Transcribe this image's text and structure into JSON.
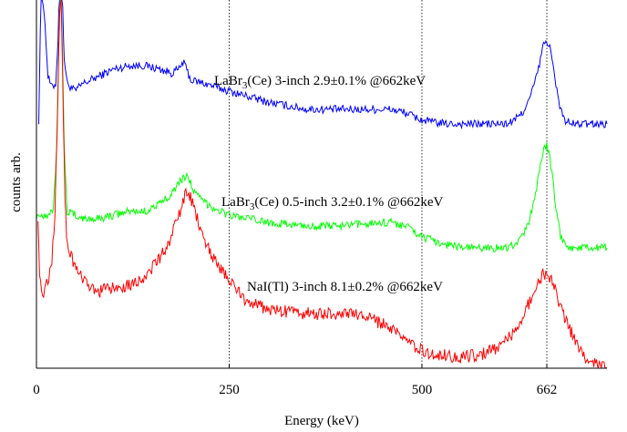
{
  "chart_data": {
    "type": "line",
    "title": "",
    "xlabel": "Energy (keV)",
    "ylabel": "counts arb.",
    "xlim": [
      0,
      740
    ],
    "ylim": [
      0,
      1
    ],
    "x_ticks": [
      {
        "value": 0,
        "label": "0"
      },
      {
        "value": 250,
        "label": "250"
      },
      {
        "value": 500,
        "label": "500"
      },
      {
        "value": 662,
        "label": "662"
      }
    ],
    "reference_lines_x": [
      250,
      500,
      662
    ],
    "grid": false,
    "legend": "none",
    "series": [
      {
        "key": "labr3_3inch",
        "label_prefix": "LaBr",
        "label_sub": "3",
        "label_suffix": "(Ce) 3-inch 2.9±0.1% @662keV",
        "color": "#0000ff",
        "points": [
          [
            3,
            0.68
          ],
          [
            6,
            1.05
          ],
          [
            10,
            0.98
          ],
          [
            15,
            0.8
          ],
          [
            20,
            0.77
          ],
          [
            25,
            0.78
          ],
          [
            28,
            0.9
          ],
          [
            30,
            1.05
          ],
          [
            33,
            1.05
          ],
          [
            36,
            0.85
          ],
          [
            40,
            0.78
          ],
          [
            50,
            0.76
          ],
          [
            60,
            0.78
          ],
          [
            80,
            0.8
          ],
          [
            100,
            0.82
          ],
          [
            120,
            0.83
          ],
          [
            140,
            0.83
          ],
          [
            160,
            0.82
          ],
          [
            175,
            0.81
          ],
          [
            185,
            0.82
          ],
          [
            190,
            0.84
          ],
          [
            195,
            0.82
          ],
          [
            200,
            0.79
          ],
          [
            220,
            0.78
          ],
          [
            250,
            0.76
          ],
          [
            300,
            0.73
          ],
          [
            350,
            0.71
          ],
          [
            400,
            0.71
          ],
          [
            440,
            0.71
          ],
          [
            460,
            0.71
          ],
          [
            480,
            0.7
          ],
          [
            500,
            0.68
          ],
          [
            530,
            0.67
          ],
          [
            560,
            0.67
          ],
          [
            610,
            0.67
          ],
          [
            620,
            0.68
          ],
          [
            630,
            0.7
          ],
          [
            640,
            0.74
          ],
          [
            650,
            0.81
          ],
          [
            655,
            0.86
          ],
          [
            658,
            0.89
          ],
          [
            662,
            0.9
          ],
          [
            666,
            0.88
          ],
          [
            670,
            0.83
          ],
          [
            675,
            0.76
          ],
          [
            680,
            0.71
          ],
          [
            685,
            0.68
          ],
          [
            695,
            0.67
          ],
          [
            720,
            0.67
          ],
          [
            740,
            0.67
          ]
        ]
      },
      {
        "key": "labr3_05inch",
        "label_prefix": "LaBr",
        "label_sub": "3",
        "label_suffix": "(Ce) 0.5-inch 3.2±0.1% @662keV",
        "color": "#00ff00",
        "points": [
          [
            0,
            0.42
          ],
          [
            15,
            0.42
          ],
          [
            22,
            0.44
          ],
          [
            26,
            0.6
          ],
          [
            29,
            0.88
          ],
          [
            31,
            1.05
          ],
          [
            33,
            0.95
          ],
          [
            36,
            0.6
          ],
          [
            40,
            0.43
          ],
          [
            60,
            0.41
          ],
          [
            80,
            0.41
          ],
          [
            100,
            0.42
          ],
          [
            120,
            0.43
          ],
          [
            140,
            0.43
          ],
          [
            160,
            0.45
          ],
          [
            175,
            0.48
          ],
          [
            185,
            0.51
          ],
          [
            190,
            0.52
          ],
          [
            195,
            0.53
          ],
          [
            200,
            0.51
          ],
          [
            205,
            0.48
          ],
          [
            215,
            0.46
          ],
          [
            230,
            0.44
          ],
          [
            250,
            0.42
          ],
          [
            300,
            0.4
          ],
          [
            350,
            0.39
          ],
          [
            400,
            0.39
          ],
          [
            440,
            0.4
          ],
          [
            460,
            0.4
          ],
          [
            480,
            0.39
          ],
          [
            500,
            0.36
          ],
          [
            530,
            0.34
          ],
          [
            560,
            0.33
          ],
          [
            610,
            0.33
          ],
          [
            620,
            0.34
          ],
          [
            630,
            0.36
          ],
          [
            640,
            0.41
          ],
          [
            650,
            0.51
          ],
          [
            655,
            0.57
          ],
          [
            658,
            0.6
          ],
          [
            662,
            0.61
          ],
          [
            666,
            0.58
          ],
          [
            670,
            0.51
          ],
          [
            675,
            0.42
          ],
          [
            680,
            0.36
          ],
          [
            685,
            0.34
          ],
          [
            695,
            0.33
          ],
          [
            720,
            0.33
          ],
          [
            740,
            0.33
          ]
        ]
      },
      {
        "key": "nai_3inch",
        "label_prefix": "NaI(Tl) 3-inch 8.1±0.2% @662keV",
        "label_sub": "",
        "label_suffix": "",
        "color": "#ff0000",
        "points": [
          [
            2,
            0.42
          ],
          [
            4,
            0.25
          ],
          [
            8,
            0.2
          ],
          [
            12,
            0.22
          ],
          [
            16,
            0.25
          ],
          [
            20,
            0.3
          ],
          [
            24,
            0.42
          ],
          [
            28,
            0.75
          ],
          [
            30,
            0.98
          ],
          [
            32,
            1.05
          ],
          [
            34,
            0.8
          ],
          [
            37,
            0.45
          ],
          [
            40,
            0.34
          ],
          [
            50,
            0.28
          ],
          [
            60,
            0.24
          ],
          [
            70,
            0.22
          ],
          [
            80,
            0.21
          ],
          [
            100,
            0.22
          ],
          [
            120,
            0.23
          ],
          [
            140,
            0.25
          ],
          [
            160,
            0.3
          ],
          [
            175,
            0.36
          ],
          [
            185,
            0.42
          ],
          [
            190,
            0.46
          ],
          [
            195,
            0.48
          ],
          [
            200,
            0.47
          ],
          [
            205,
            0.43
          ],
          [
            215,
            0.37
          ],
          [
            230,
            0.3
          ],
          [
            250,
            0.24
          ],
          [
            270,
            0.19
          ],
          [
            300,
            0.16
          ],
          [
            350,
            0.15
          ],
          [
            400,
            0.15
          ],
          [
            430,
            0.14
          ],
          [
            450,
            0.12
          ],
          [
            470,
            0.09
          ],
          [
            490,
            0.06
          ],
          [
            510,
            0.04
          ],
          [
            550,
            0.03
          ],
          [
            580,
            0.04
          ],
          [
            600,
            0.06
          ],
          [
            620,
            0.1
          ],
          [
            635,
            0.16
          ],
          [
            645,
            0.21
          ],
          [
            652,
            0.24
          ],
          [
            658,
            0.26
          ],
          [
            662,
            0.26
          ],
          [
            668,
            0.24
          ],
          [
            675,
            0.2
          ],
          [
            685,
            0.14
          ],
          [
            700,
            0.07
          ],
          [
            710,
            0.03
          ],
          [
            730,
            0.01
          ],
          [
            740,
            0.0
          ]
        ]
      }
    ]
  }
}
